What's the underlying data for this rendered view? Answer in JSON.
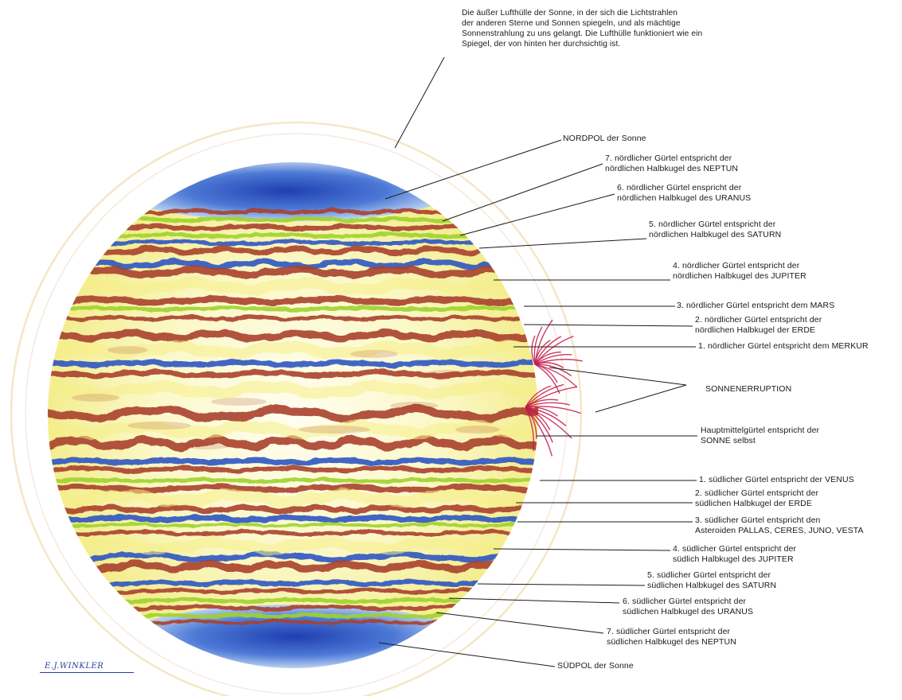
{
  "colors": {
    "band_red": "#a8412b",
    "band_blue": "#2f54c2",
    "band_green": "#9fd32c",
    "band_yellow": "#f5ef86",
    "glow_yellow": "#fdfbd2",
    "eruption": "#c2184a",
    "line": "#1a1a1a",
    "signature": "#2a3e9a"
  },
  "labels": {
    "atmosphere": "Die äußer Lufthülle der Sonne, in der sich die Lichtstrahlen\nder anderen Sterne und Sonnen spiegeln, und als mächtige\nSonnenstrahlung zu uns gelangt. Die Lufthülle funktioniert wie ein\nSpiegel, der von hinten her durchsichtig ist.",
    "north_pole": "NORDPOL der Sonne",
    "n7": "7. nördlicher Gürtel entspricht der\nnördlichen Halbkugel des NEPTUN",
    "n6": "6. nördlicher Gürtel enspricht der\nnördlichen Halbkugel des URANUS",
    "n5": "5. nördlicher Gürtel entspricht der\nnördlichen Halbkugel des SATURN",
    "n4": "4. nördlicher Gürtel entspricht der\nnördlichen Halbkugel des JUPITER",
    "n3": "3. nördlicher Gürtel entspricht dem MARS",
    "n2": "2. nördlicher Gürtel entspricht der\nnördlichen Halbkugel der ERDE",
    "n1": "1. nördlicher Gürtel entspricht dem MERKUR",
    "eruption": "SONNENERRUPTION",
    "main_belt": "Hauptmittelgürtel entspricht der\nSONNE selbst",
    "s1": "1. südlicher Gürtel entspricht der VENUS",
    "s2": "2. südlicher Gürtel entspricht der\nsüdlichen Halbkugel der ERDE",
    "s3": "3. südlicher Gürtel entspricht den\nAsteroiden PALLAS, CERES, JUNO, VESTA",
    "s4": "4. südlicher Gürtel entspricht der\nsüdlich Halbkugel des JUPITER",
    "s5": "5. südlicher Gürtel entspricht der\nsüdlichen Halbkugel des SATURN",
    "s6": "6. südlicher Gürtel entspricht der\nsüdlichen Halbkugel des URANUS",
    "s7": "7. südlicher Gürtel entspricht der\nsüdlichen Halbkugel des NEPTUN",
    "south_pole": "SÜDPOL der Sonne"
  },
  "signature": "E.J.WINKLER"
}
